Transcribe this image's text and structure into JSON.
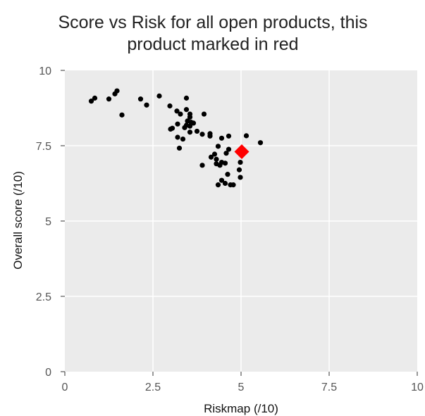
{
  "chart_data": {
    "type": "scatter",
    "title": "Score vs Risk for all open products, this product marked in red",
    "title_lines": [
      "Score vs Risk for all open products, this",
      "product marked in red"
    ],
    "xlabel": "Riskmap (/10)",
    "ylabel": "Overall score (/10)",
    "xlim": [
      0,
      10
    ],
    "ylim": [
      0,
      10
    ],
    "xticks": [
      0,
      2.5,
      5,
      7.5,
      10
    ],
    "xtick_labels": [
      "0",
      "2.5",
      "5",
      "7.5",
      "10"
    ],
    "yticks": [
      0,
      2.5,
      5,
      7.5,
      10
    ],
    "ytick_labels": [
      "0",
      "2.5",
      "5",
      "7.5",
      "10"
    ],
    "grid": true,
    "background_color": "#ebebeb",
    "grid_color": "#ffffff",
    "series": [
      {
        "marker": "circle",
        "color": "#000000",
        "points": [
          [
            0.75,
            8.98
          ],
          [
            0.85,
            9.08
          ],
          [
            1.25,
            9.05
          ],
          [
            1.42,
            9.22
          ],
          [
            1.48,
            9.32
          ],
          [
            1.62,
            8.52
          ],
          [
            2.15,
            9.05
          ],
          [
            2.32,
            8.85
          ],
          [
            2.68,
            9.15
          ],
          [
            2.98,
            8.82
          ],
          [
            3.45,
            9.08
          ],
          [
            3.18,
            8.65
          ],
          [
            3.28,
            8.55
          ],
          [
            3.45,
            8.7
          ],
          [
            3.55,
            8.55
          ],
          [
            3.55,
            8.45
          ],
          [
            3.95,
            8.55
          ],
          [
            3.48,
            8.32
          ],
          [
            3.58,
            8.28
          ],
          [
            3.65,
            8.25
          ],
          [
            3.45,
            8.18
          ],
          [
            3.55,
            8.15
          ],
          [
            3.2,
            8.22
          ],
          [
            3.4,
            8.1
          ],
          [
            3.0,
            8.05
          ],
          [
            3.05,
            8.08
          ],
          [
            3.55,
            7.95
          ],
          [
            3.75,
            7.98
          ],
          [
            3.9,
            7.88
          ],
          [
            4.12,
            7.9
          ],
          [
            4.12,
            7.82
          ],
          [
            4.45,
            7.75
          ],
          [
            4.65,
            7.82
          ],
          [
            5.15,
            7.83
          ],
          [
            5.55,
            7.6
          ],
          [
            3.2,
            7.78
          ],
          [
            3.35,
            7.72
          ],
          [
            3.25,
            7.42
          ],
          [
            4.35,
            7.48
          ],
          [
            4.65,
            7.38
          ],
          [
            4.58,
            7.25
          ],
          [
            4.15,
            7.12
          ],
          [
            4.25,
            7.22
          ],
          [
            4.3,
            7.05
          ],
          [
            4.45,
            6.95
          ],
          [
            4.55,
            6.92
          ],
          [
            4.4,
            6.85
          ],
          [
            4.3,
            6.9
          ],
          [
            4.98,
            6.95
          ],
          [
            3.9,
            6.85
          ],
          [
            4.95,
            6.7
          ],
          [
            4.62,
            6.55
          ],
          [
            4.98,
            6.45
          ],
          [
            4.45,
            6.35
          ],
          [
            4.55,
            6.25
          ],
          [
            4.35,
            6.2
          ],
          [
            4.7,
            6.2
          ],
          [
            4.78,
            6.2
          ]
        ]
      },
      {
        "marker": "diamond",
        "color": "#ff0000",
        "points": [
          [
            5.02,
            7.3
          ]
        ]
      }
    ]
  }
}
